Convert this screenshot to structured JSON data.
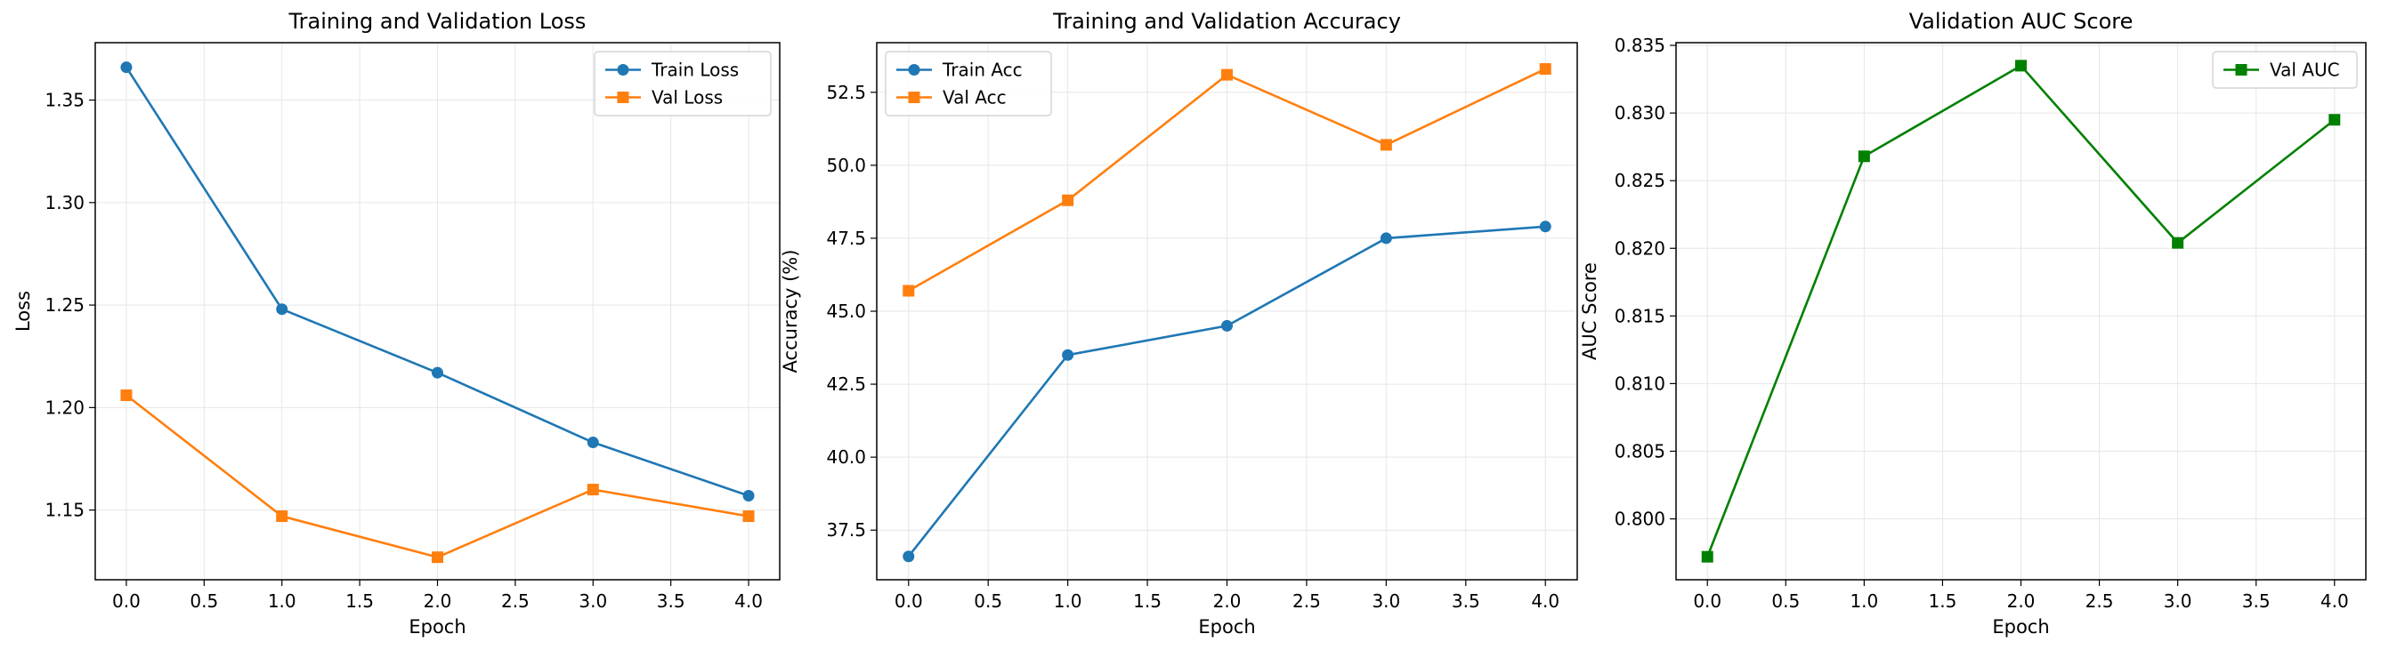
{
  "chart_data": [
    {
      "type": "line",
      "title": "Training and Validation Loss",
      "xlabel": "Epoch",
      "ylabel": "Loss",
      "x": [
        0,
        1,
        2,
        3,
        4
      ],
      "xlim": [
        -0.2,
        4.2
      ],
      "ylim": [
        1.116,
        1.378
      ],
      "xticks": [
        0.0,
        0.5,
        1.0,
        1.5,
        2.0,
        2.5,
        3.0,
        3.5,
        4.0
      ],
      "xtick_labels": [
        "0.0",
        "0.5",
        "1.0",
        "1.5",
        "2.0",
        "2.5",
        "3.0",
        "3.5",
        "4.0"
      ],
      "yticks": [
        1.15,
        1.2,
        1.25,
        1.3,
        1.35
      ],
      "ytick_labels": [
        "1.15",
        "1.20",
        "1.25",
        "1.30",
        "1.35"
      ],
      "grid": true,
      "legend": "top-right",
      "series": [
        {
          "name": "Train Loss",
          "values": [
            1.366,
            1.248,
            1.217,
            1.183,
            1.157
          ],
          "color": "#1f77b4",
          "marker": "circle"
        },
        {
          "name": "Val Loss",
          "values": [
            1.206,
            1.147,
            1.127,
            1.16,
            1.147
          ],
          "color": "#ff7f0e",
          "marker": "square"
        }
      ]
    },
    {
      "type": "line",
      "title": "Training and Validation Accuracy",
      "xlabel": "Epoch",
      "ylabel": "Accuracy (%)",
      "x": [
        0,
        1,
        2,
        3,
        4
      ],
      "xlim": [
        -0.2,
        4.2
      ],
      "ylim": [
        35.8,
        54.2
      ],
      "xticks": [
        0.0,
        0.5,
        1.0,
        1.5,
        2.0,
        2.5,
        3.0,
        3.5,
        4.0
      ],
      "xtick_labels": [
        "0.0",
        "0.5",
        "1.0",
        "1.5",
        "2.0",
        "2.5",
        "3.0",
        "3.5",
        "4.0"
      ],
      "yticks": [
        37.5,
        40.0,
        42.5,
        45.0,
        47.5,
        50.0,
        52.5
      ],
      "ytick_labels": [
        "37.5",
        "40.0",
        "42.5",
        "45.0",
        "47.5",
        "50.0",
        "52.5"
      ],
      "grid": true,
      "legend": "top-left",
      "series": [
        {
          "name": "Train Acc",
          "values": [
            36.6,
            43.5,
            44.5,
            47.5,
            47.9
          ],
          "color": "#1f77b4",
          "marker": "circle"
        },
        {
          "name": "Val Acc",
          "values": [
            45.7,
            48.8,
            53.1,
            50.7,
            53.3
          ],
          "color": "#ff7f0e",
          "marker": "square"
        }
      ]
    },
    {
      "type": "line",
      "title": "Validation AUC Score",
      "xlabel": "Epoch",
      "ylabel": "AUC Score",
      "x": [
        0,
        1,
        2,
        3,
        4
      ],
      "xlim": [
        -0.2,
        4.2
      ],
      "ylim": [
        0.7955,
        0.8352
      ],
      "xticks": [
        0.0,
        0.5,
        1.0,
        1.5,
        2.0,
        2.5,
        3.0,
        3.5,
        4.0
      ],
      "xtick_labels": [
        "0.0",
        "0.5",
        "1.0",
        "1.5",
        "2.0",
        "2.5",
        "3.0",
        "3.5",
        "4.0"
      ],
      "yticks": [
        0.8,
        0.805,
        0.81,
        0.815,
        0.82,
        0.825,
        0.83,
        0.835
      ],
      "ytick_labels": [
        "0.800",
        "0.805",
        "0.810",
        "0.815",
        "0.820",
        "0.825",
        "0.830",
        "0.835"
      ],
      "grid": true,
      "legend": "top-right",
      "series": [
        {
          "name": "Val AUC",
          "values": [
            0.7972,
            0.8268,
            0.8335,
            0.8204,
            0.8295
          ],
          "color": "#008000",
          "marker": "square"
        }
      ]
    }
  ]
}
